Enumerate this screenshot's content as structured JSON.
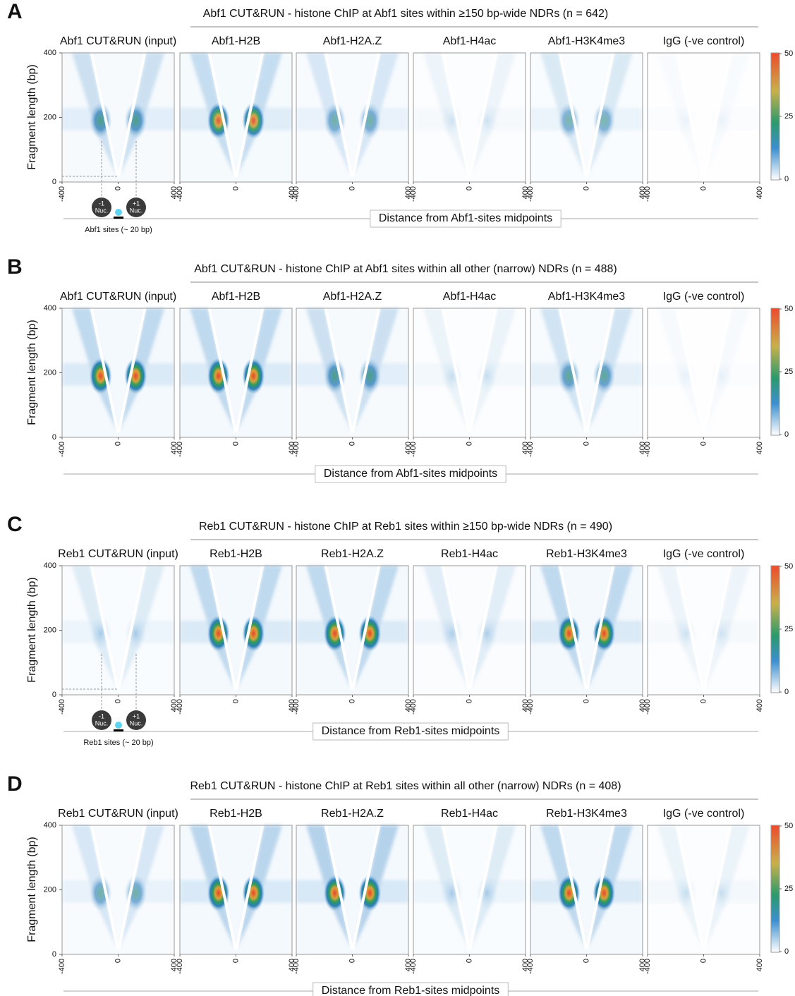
{
  "panels": [
    {
      "letter": "A",
      "title": "Abf1 CUT&RUN - histone ChIP at Abf1 sites within ≥150 bp-wide NDRs (n = 642)",
      "heatmaps": [
        "Abf1 CUT&RUN (input)",
        "Abf1-H2B",
        "Abf1-H2A.Z",
        "Abf1-H4ac",
        "Abf1-H3K4me3",
        "IgG (-ve control)"
      ],
      "y_label": "Fragment length (bp)",
      "yticks": [
        0,
        200,
        400
      ],
      "xticks": [
        -400,
        0,
        400
      ],
      "colorbar_ticks": [
        0,
        25,
        50
      ],
      "x_label": "Distance from Abf1-sites midpoints",
      "diagram": {
        "minus_label": "-1",
        "plus_label": "+1",
        "nuc_label": "Nuc.",
        "site_label": "Abf1 sites (~ 20 bp)"
      }
    },
    {
      "letter": "B",
      "title": "Abf1 CUT&RUN - histone ChIP at Abf1 sites within all other (narrow) NDRs (n = 488)",
      "heatmaps": [
        "Abf1 CUT&RUN (input)",
        "Abf1-H2B",
        "Abf1-H2A.Z",
        "Abf1-H4ac",
        "Abf1-H3K4me3",
        "IgG (-ve control)"
      ],
      "y_label": "Fragment length (bp)",
      "yticks": [
        0,
        200,
        400
      ],
      "xticks": [
        -400,
        0,
        400
      ],
      "colorbar_ticks": [
        0,
        25,
        50
      ],
      "x_label": "Distance from Abf1-sites midpoints"
    },
    {
      "letter": "C",
      "title": "Reb1 CUT&RUN - histone ChIP at Reb1 sites within ≥150 bp-wide NDRs (n = 490)",
      "heatmaps": [
        "Reb1 CUT&RUN (input)",
        "Reb1-H2B",
        "Reb1-H2A.Z",
        "Reb1-H4ac",
        "Reb1-H3K4me3",
        "IgG (-ve control)"
      ],
      "y_label": "Fragment length (bp)",
      "yticks": [
        0,
        200,
        400
      ],
      "xticks": [
        -400,
        0,
        400
      ],
      "colorbar_ticks": [
        0,
        25,
        50
      ],
      "x_label": "Distance from Reb1-sites midpoints",
      "diagram": {
        "minus_label": "-1",
        "plus_label": "+1",
        "nuc_label": "Nuc.",
        "site_label": "Reb1 sites (~ 20 bp)"
      }
    },
    {
      "letter": "D",
      "title": "Reb1 CUT&RUN - histone ChIP at Reb1 sites within all other (narrow) NDRs (n = 408)",
      "heatmaps": [
        "Reb1 CUT&RUN (input)",
        "Reb1-H2B",
        "Reb1-H2A.Z",
        "Reb1-H4ac",
        "Reb1-H3K4me3",
        "IgG (-ve control)"
      ],
      "y_label": "Fragment length (bp)",
      "yticks": [
        0,
        200,
        400
      ],
      "xticks": [
        -400,
        0,
        400
      ],
      "colorbar_ticks": [
        0,
        25,
        50
      ],
      "x_label": "Distance from Reb1-sites midpoints"
    }
  ]
}
